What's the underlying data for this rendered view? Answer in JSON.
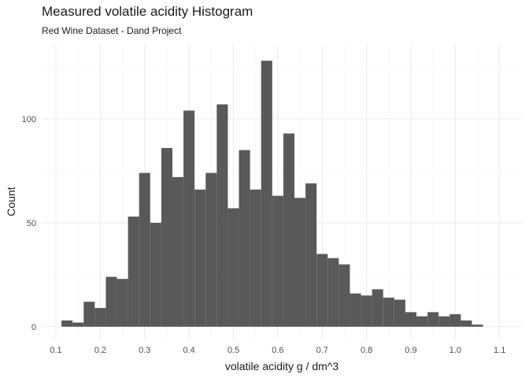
{
  "chart_data": {
    "type": "histogram",
    "title": "Measured volatile acidity Histogram",
    "subtitle": "Red Wine Dataset - Dand Project",
    "xlabel": "volatile acidity g / dm^3",
    "ylabel": "Count",
    "bin_width": 0.025,
    "xlim": [
      0.068,
      1.152
    ],
    "ylim": [
      -6.5,
      136
    ],
    "x_ticks": [
      0.1,
      0.2,
      0.3,
      0.4,
      0.5,
      0.6,
      0.7,
      0.8,
      0.9,
      1.0,
      1.1
    ],
    "x_tick_labels": [
      "0.1",
      "0.2",
      "0.3",
      "0.4",
      "0.5",
      "0.6",
      "0.7",
      "0.8",
      "0.9",
      "1.0",
      "1.1"
    ],
    "y_ticks": [
      0,
      50,
      100
    ],
    "y_tick_labels": [
      "0",
      "50",
      "100"
    ],
    "grid": true,
    "bar_color": "#595959",
    "bins": [
      {
        "x": 0.125,
        "count": 3
      },
      {
        "x": 0.15,
        "count": 2
      },
      {
        "x": 0.175,
        "count": 12
      },
      {
        "x": 0.2,
        "count": 9
      },
      {
        "x": 0.225,
        "count": 24
      },
      {
        "x": 0.25,
        "count": 23
      },
      {
        "x": 0.275,
        "count": 53
      },
      {
        "x": 0.3,
        "count": 74
      },
      {
        "x": 0.325,
        "count": 50
      },
      {
        "x": 0.35,
        "count": 86
      },
      {
        "x": 0.375,
        "count": 72
      },
      {
        "x": 0.4,
        "count": 104
      },
      {
        "x": 0.425,
        "count": 66
      },
      {
        "x": 0.45,
        "count": 74
      },
      {
        "x": 0.475,
        "count": 107
      },
      {
        "x": 0.5,
        "count": 57
      },
      {
        "x": 0.525,
        "count": 85
      },
      {
        "x": 0.55,
        "count": 66
      },
      {
        "x": 0.575,
        "count": 128
      },
      {
        "x": 0.6,
        "count": 63
      },
      {
        "x": 0.625,
        "count": 93
      },
      {
        "x": 0.65,
        "count": 62
      },
      {
        "x": 0.675,
        "count": 69
      },
      {
        "x": 0.7,
        "count": 35
      },
      {
        "x": 0.725,
        "count": 33
      },
      {
        "x": 0.75,
        "count": 30
      },
      {
        "x": 0.775,
        "count": 16
      },
      {
        "x": 0.8,
        "count": 15
      },
      {
        "x": 0.825,
        "count": 18
      },
      {
        "x": 0.85,
        "count": 14
      },
      {
        "x": 0.875,
        "count": 13
      },
      {
        "x": 0.9,
        "count": 7
      },
      {
        "x": 0.925,
        "count": 5
      },
      {
        "x": 0.95,
        "count": 7
      },
      {
        "x": 0.975,
        "count": 5
      },
      {
        "x": 1.0,
        "count": 6
      },
      {
        "x": 1.025,
        "count": 3
      },
      {
        "x": 1.05,
        "count": 1
      },
      {
        "x": 1.075,
        "count": 0
      }
    ]
  }
}
